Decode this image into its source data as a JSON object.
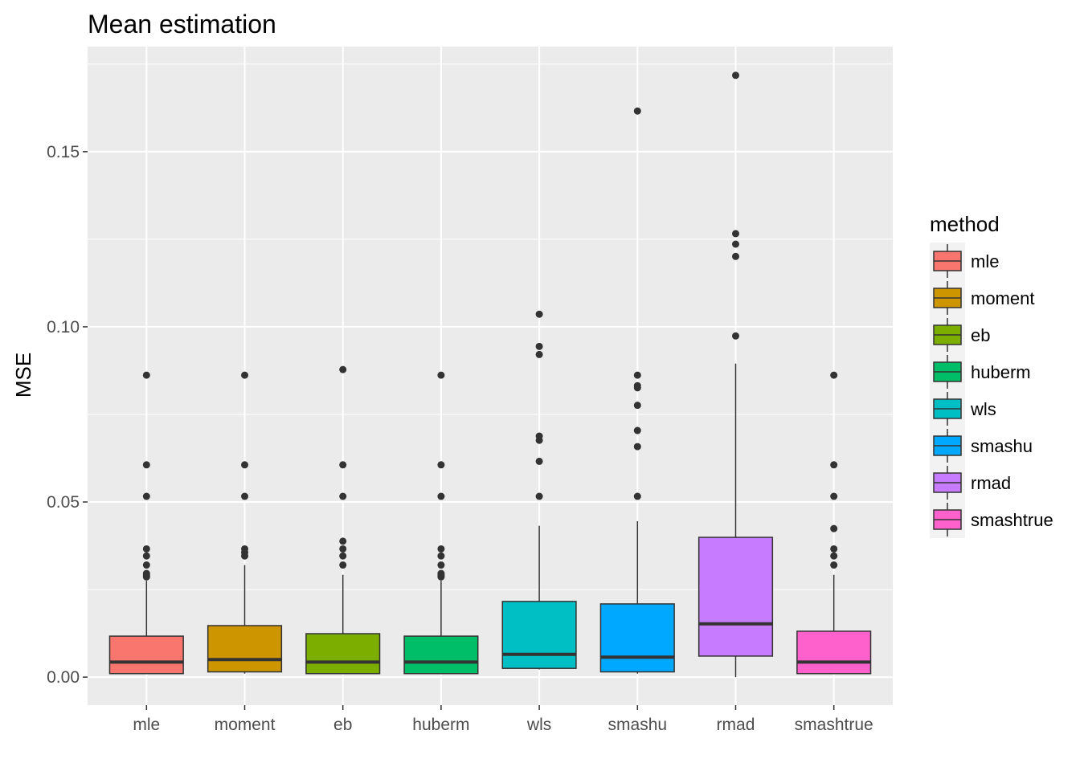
{
  "chart_data": {
    "type": "boxplot",
    "title": "Mean estimation",
    "xlabel": "",
    "ylabel": "MSE",
    "ylim": [
      -0.008,
      0.18
    ],
    "yticks": [
      0.0,
      0.05,
      0.1,
      0.15
    ],
    "ytick_labels": [
      "0.00",
      "0.05",
      "0.10",
      "0.15"
    ],
    "grid": true,
    "legend": {
      "title": "method",
      "placement": "right"
    },
    "categories": [
      "mle",
      "moment",
      "eb",
      "huberm",
      "wls",
      "smashu",
      "rmad",
      "smashtrue"
    ],
    "series": [
      {
        "name": "mle",
        "color": "#F8766D",
        "whisker_low": 0.001,
        "q1": 0.001,
        "median": 0.0043,
        "q3": 0.0117,
        "whisker_high": 0.0275,
        "outliers": [
          0.0286,
          0.029,
          0.0296,
          0.032,
          0.0346,
          0.0366,
          0.0516,
          0.0606,
          0.0862
        ]
      },
      {
        "name": "moment",
        "color": "#CD9600",
        "whisker_low": 0.001,
        "q1": 0.0015,
        "median": 0.005,
        "q3": 0.0147,
        "whisker_high": 0.032,
        "outliers": [
          0.0346,
          0.0356,
          0.0366,
          0.0516,
          0.0606,
          0.0862
        ]
      },
      {
        "name": "eb",
        "color": "#7CAE00",
        "whisker_low": 0.001,
        "q1": 0.001,
        "median": 0.0043,
        "q3": 0.0124,
        "whisker_high": 0.0292,
        "outliers": [
          0.032,
          0.0346,
          0.0366,
          0.0388,
          0.0516,
          0.0606,
          0.0878
        ]
      },
      {
        "name": "huberm",
        "color": "#00BE67",
        "whisker_low": 0.001,
        "q1": 0.001,
        "median": 0.0043,
        "q3": 0.0117,
        "whisker_high": 0.0275,
        "outliers": [
          0.0286,
          0.029,
          0.0296,
          0.032,
          0.0346,
          0.0366,
          0.0516,
          0.0606,
          0.0862
        ]
      },
      {
        "name": "wls",
        "color": "#00BFC4",
        "whisker_low": 0.0022,
        "q1": 0.0025,
        "median": 0.0065,
        "q3": 0.0216,
        "whisker_high": 0.0432,
        "outliers": [
          0.0516,
          0.0616,
          0.0676,
          0.0688,
          0.0921,
          0.0944,
          0.1036
        ]
      },
      {
        "name": "smashu",
        "color": "#00A9FF",
        "whisker_low": 0.001,
        "q1": 0.0015,
        "median": 0.0057,
        "q3": 0.0209,
        "whisker_high": 0.0445,
        "outliers": [
          0.0516,
          0.0658,
          0.0704,
          0.0776,
          0.0826,
          0.0832,
          0.0862,
          0.1616
        ]
      },
      {
        "name": "rmad",
        "color": "#C77CFF",
        "whisker_low": 0.0,
        "q1": 0.006,
        "median": 0.0152,
        "q3": 0.0399,
        "whisker_high": 0.0895,
        "outliers": [
          0.0974,
          0.1201,
          0.1236,
          0.1266,
          0.1718
        ]
      },
      {
        "name": "smashtrue",
        "color": "#FF61CC",
        "whisker_low": 0.001,
        "q1": 0.001,
        "median": 0.0043,
        "q3": 0.0131,
        "whisker_high": 0.0292,
        "outliers": [
          0.032,
          0.0346,
          0.0366,
          0.0424,
          0.0516,
          0.0606,
          0.0862
        ]
      }
    ]
  }
}
